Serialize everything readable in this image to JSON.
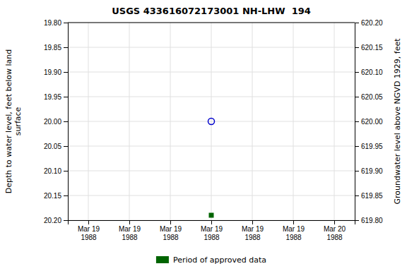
{
  "chart_data": {
    "type": "scatter",
    "title": "USGS 433616072173001 NH-LHW  194",
    "ylabel": "Depth to water level, feet below land\nsurface",
    "y2label": "Groundwater level above NGVD 1929, feet",
    "categories": [
      "Mar 19\n1988",
      "Mar 19\n1988",
      "Mar 19\n1988",
      "Mar 19\n1988",
      "Mar 19\n1988",
      "Mar 19\n1988",
      "Mar 20\n1988"
    ],
    "series": [
      {
        "color": "#0000cc",
        "marker": "open-circle",
        "values": [
          null,
          null,
          null,
          20.0,
          null,
          null,
          null
        ]
      },
      {
        "name": "Period of approved data",
        "color": "#006400",
        "marker": "square",
        "values": [
          null,
          null,
          null,
          20.19,
          null,
          null,
          null
        ]
      }
    ],
    "ylim": [
      20.2,
      19.8
    ],
    "yticks": [
      {
        "value": 19.8,
        "label": "19.80"
      },
      19.85,
      {
        "value": 19.9,
        "label": "19.90"
      },
      19.95,
      {
        "value": 20.0,
        "label": "20.00"
      },
      20.05,
      {
        "value": 20.1,
        "label": "20.10"
      },
      20.15,
      {
        "value": 20.2,
        "label": "20.20"
      }
    ],
    "y2lim": [
      619.8,
      620.2
    ],
    "y2ticks": [
      {
        "value": 620.2,
        "label": "620.20"
      },
      620.15,
      {
        "value": 620.1,
        "label": "620.10"
      },
      620.05,
      {
        "value": 620.0,
        "label": "620.00"
      },
      619.95,
      {
        "value": 619.9,
        "label": "619.90"
      },
      619.85,
      {
        "value": 619.8,
        "label": "619.80"
      }
    ],
    "grid": true,
    "legend": "bottom"
  }
}
